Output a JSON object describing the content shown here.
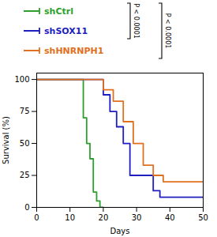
{
  "chart_data": {
    "type": "line",
    "xlabel": "Days",
    "ylabel": "Survival (%)",
    "xlim": [
      0,
      50
    ],
    "ylim": [
      0,
      105
    ],
    "xticks": [
      0,
      10,
      20,
      30,
      40,
      50
    ],
    "yticks": [
      0,
      25,
      50,
      75,
      100
    ],
    "legend": "top",
    "series": [
      {
        "name": "shCtrl",
        "color": "#2ca02c",
        "x": [
          0,
          14,
          14,
          15,
          15,
          16,
          16,
          17,
          17,
          18,
          18,
          19,
          19,
          20,
          20
        ],
        "values": [
          100,
          100,
          70,
          70,
          50,
          50,
          38,
          38,
          12,
          12,
          5,
          5,
          0,
          0,
          0
        ]
      },
      {
        "name": "shSOX11",
        "color": "#1f1fbf",
        "x": [
          0,
          20,
          20,
          22,
          22,
          24,
          24,
          26,
          26,
          28,
          28,
          30,
          30,
          35,
          35,
          37,
          37,
          50
        ],
        "values": [
          100,
          100,
          88,
          88,
          75,
          75,
          63,
          63,
          50,
          50,
          25,
          25,
          25,
          25,
          13,
          13,
          8,
          8
        ]
      },
      {
        "name": "shHNRNPH1",
        "color": "#e07020",
        "x": [
          0,
          20,
          20,
          23,
          23,
          26,
          26,
          29,
          29,
          32,
          32,
          35,
          35,
          38,
          38,
          50
        ],
        "values": [
          100,
          100,
          92,
          92,
          83,
          83,
          67,
          67,
          50,
          50,
          33,
          33,
          25,
          25,
          20,
          20
        ]
      }
    ],
    "annotations": [
      "P < 0.0001",
      "P < 0.0001"
    ]
  }
}
